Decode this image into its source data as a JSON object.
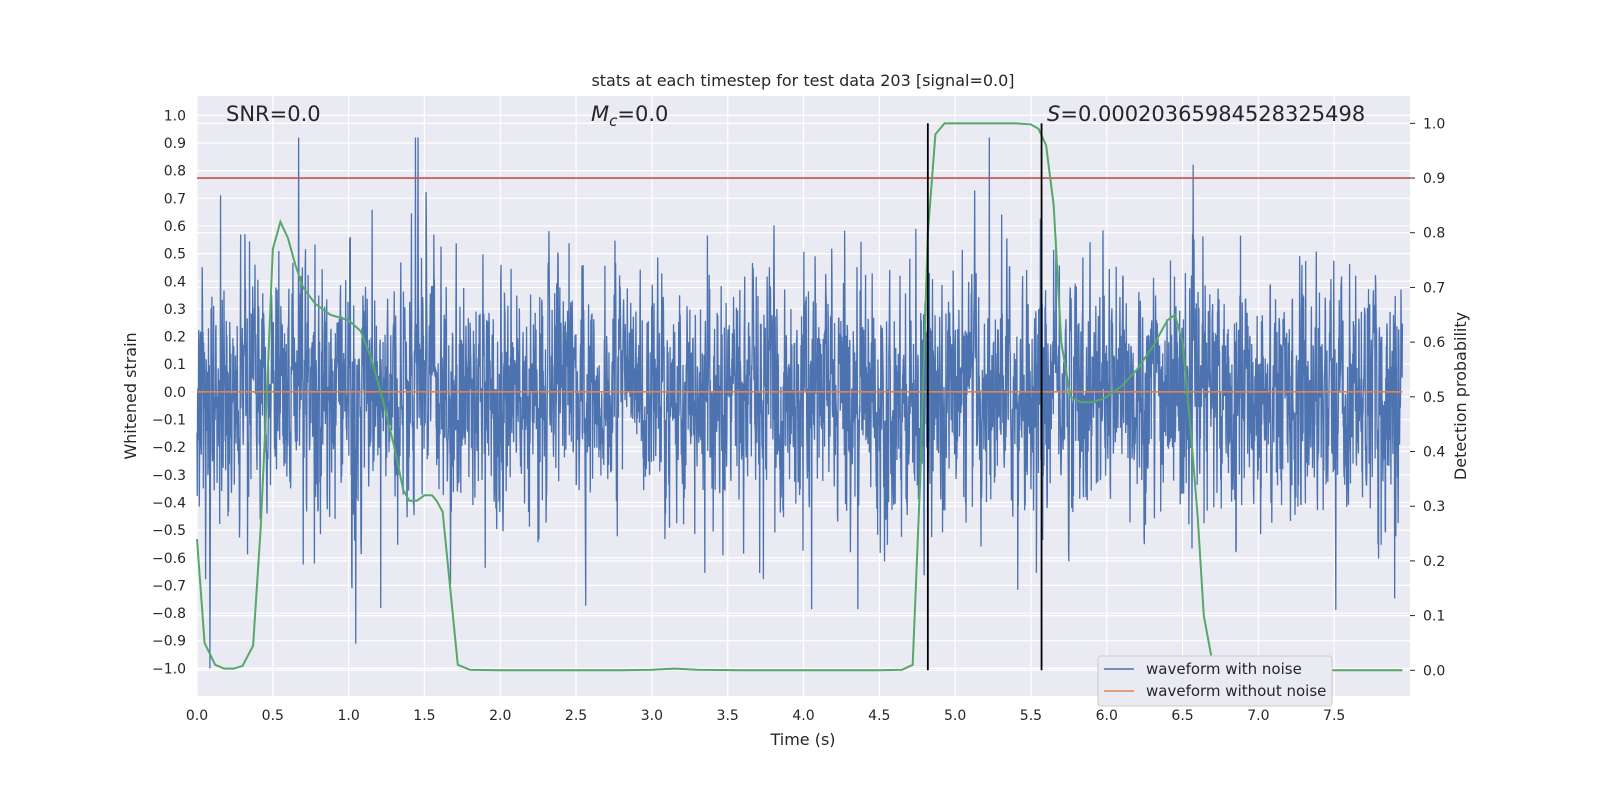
{
  "chart_data": {
    "type": "line",
    "title": "stats at each timestep for test data 203 [signal=0.0]",
    "xlabel": "Time (s)",
    "ylabel_left": "Whitened strain",
    "ylabel_right": "Detection probability",
    "xlim": [
      0.0,
      8.0
    ],
    "ylim_left": [
      -1.1,
      1.07
    ],
    "ylim_right": [
      -0.047,
      1.05
    ],
    "x_ticks": [
      "0.0",
      "0.5",
      "1.0",
      "1.5",
      "2.0",
      "2.5",
      "3.0",
      "3.5",
      "4.0",
      "4.5",
      "5.0",
      "5.5",
      "6.0",
      "6.5",
      "7.0",
      "7.5"
    ],
    "y_ticks_left": [
      "1.0",
      "0.9",
      "0.8",
      "0.7",
      "0.6",
      "0.5",
      "0.4",
      "0.3",
      "0.2",
      "0.1",
      "0.0",
      "-0.1",
      "-0.2",
      "-0.3",
      "-0.4",
      "-0.5",
      "-0.6",
      "-0.7",
      "-0.8",
      "-0.9",
      "-1.0"
    ],
    "y_ticks_right": [
      "1.0",
      "0.9",
      "0.8",
      "0.7",
      "0.6",
      "0.5",
      "0.4",
      "0.3",
      "0.2",
      "0.1",
      "0.0"
    ],
    "grid": true,
    "legend_position": "bottom-right",
    "annotations": {
      "snr": "SNR=0.0",
      "mc_symbol": "M",
      "mc_sub": "c",
      "mc_value": "=0.0",
      "s_symbol": "S",
      "s_value": "=0.00020365984528325498"
    },
    "colors": {
      "noise": "#4c72b0",
      "clean": "#dd8452",
      "prob": "#55a868",
      "threshold": "#c44e52",
      "markers": "#000000",
      "background": "#eaeaf2"
    },
    "series": [
      {
        "name": "waveform with noise",
        "axis": "left",
        "description_only": false,
        "amplitude_range": [
          -1.0,
          0.92
        ]
      },
      {
        "name": "waveform without noise",
        "axis": "left",
        "value": 0.0
      },
      {
        "axis": "right",
        "x": [
          0.0,
          0.05,
          0.12,
          0.18,
          0.24,
          0.3,
          0.37,
          0.42,
          0.46,
          0.5,
          0.55,
          0.6,
          0.65,
          0.7,
          0.78,
          0.88,
          1.0,
          1.08,
          1.15,
          1.22,
          1.3,
          1.36,
          1.4,
          1.45,
          1.5,
          1.55,
          1.58,
          1.62,
          1.67,
          1.72,
          1.8,
          2.0,
          2.5,
          2.8,
          3.0,
          3.15,
          3.3,
          3.6,
          4.0,
          4.5,
          4.65,
          4.72,
          4.77,
          4.82,
          4.87,
          4.93,
          5.0,
          5.2,
          5.4,
          5.5,
          5.55,
          5.6,
          5.65,
          5.7,
          5.76,
          5.83,
          5.9,
          5.96,
          6.0,
          6.1,
          6.2,
          6.3,
          6.4,
          6.45,
          6.5,
          6.55,
          6.6,
          6.64,
          6.7,
          6.8,
          7.0,
          7.5,
          7.95
        ],
        "y": [
          0.24,
          0.05,
          0.01,
          0.003,
          0.003,
          0.008,
          0.045,
          0.26,
          0.5,
          0.77,
          0.82,
          0.79,
          0.74,
          0.7,
          0.67,
          0.65,
          0.64,
          0.62,
          0.57,
          0.5,
          0.41,
          0.33,
          0.31,
          0.31,
          0.32,
          0.32,
          0.31,
          0.29,
          0.15,
          0.01,
          0.001,
          0.0,
          0.0,
          0.0,
          0.001,
          0.003,
          0.001,
          0.0,
          0.0,
          0.0,
          0.001,
          0.01,
          0.35,
          0.8,
          0.98,
          1.0,
          1.0,
          1.0,
          1.0,
          0.998,
          0.99,
          0.96,
          0.85,
          0.6,
          0.5,
          0.49,
          0.49,
          0.495,
          0.5,
          0.52,
          0.55,
          0.59,
          0.64,
          0.65,
          0.6,
          0.45,
          0.28,
          0.1,
          0.01,
          0.001,
          0.0,
          0.0,
          0.0
        ]
      },
      {
        "axis": "right",
        "type": "hline",
        "value": 0.9
      },
      {
        "axis": "right",
        "type": "vline",
        "x": [
          4.82,
          5.57
        ],
        "yrange": [
          0.0,
          1.0
        ]
      }
    ]
  }
}
